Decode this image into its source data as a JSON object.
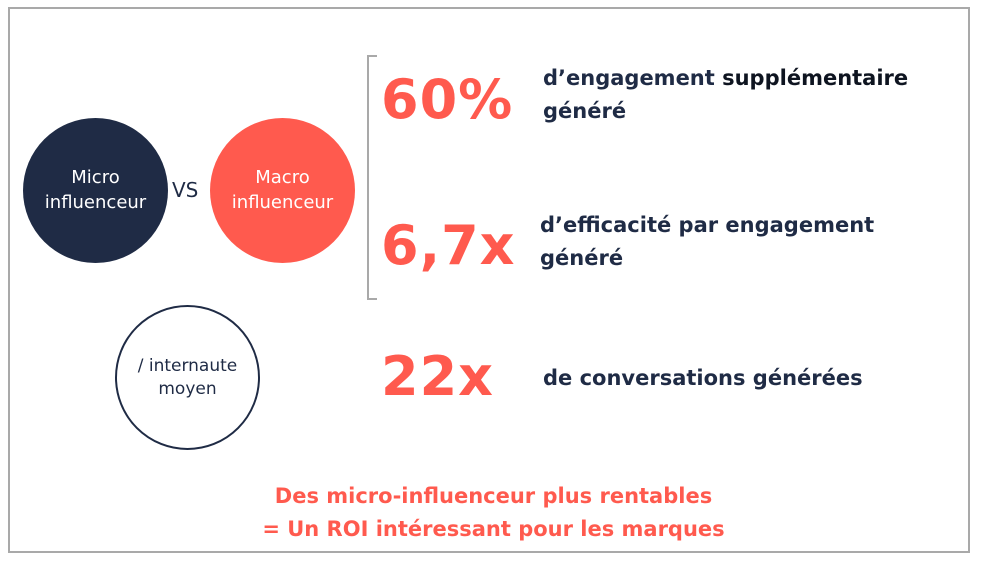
{
  "circles": {
    "micro": {
      "line1": "Micro",
      "line2": "influenceur"
    },
    "vs": "VS",
    "macro": {
      "line1": "Macro",
      "line2": "influenceur"
    },
    "internaute": {
      "line1": "/ internaute",
      "line2": "moyen"
    }
  },
  "stats": [
    {
      "value": "60%",
      "line1_a": "d’engagement ",
      "line1_b": "supplémentaire",
      "line2": "généré"
    },
    {
      "value": "6,7x",
      "line1": "d’efficacité par engagement",
      "line2": "généré"
    },
    {
      "value": "22x",
      "line1": "de conversations générées"
    }
  ],
  "footer": {
    "line1": "Des micro-influenceur plus rentables",
    "line2": "= Un ROI intéressant pour les marques"
  },
  "colors": {
    "navy": "#1f2b45",
    "coral": "#ff5a4e",
    "border": "#a9a9a9"
  }
}
